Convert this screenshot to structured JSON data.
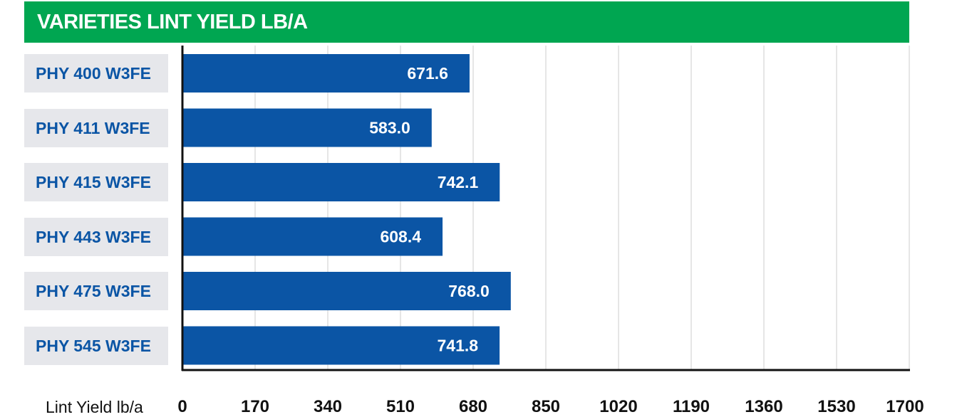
{
  "chart_data": {
    "type": "bar",
    "orientation": "horizontal",
    "title": "VARIETIES LINT YIELD LB/A",
    "xlabel": "Lint Yield lb/a",
    "ylabel": "",
    "categories": [
      "PHY 400 W3FE",
      "PHY 411 W3FE",
      "PHY 415 W3FE",
      "PHY 443 W3FE",
      "PHY 475 W3FE",
      "PHY 545 W3FE"
    ],
    "values": [
      671.6,
      583.0,
      742.1,
      608.4,
      768.0,
      741.8
    ],
    "value_labels": [
      "671.6",
      "583.0",
      "742.1",
      "608.4",
      "768.0",
      "741.8"
    ],
    "xlim": [
      0,
      1700
    ],
    "xticks": [
      0,
      170,
      340,
      510,
      680,
      850,
      1020,
      1190,
      1360,
      1530,
      1700
    ],
    "grid": true,
    "colors": {
      "title_bg": "#00a651",
      "bar": "#0b55a5",
      "label_bg": "#e6e7eb",
      "label_text": "#0b55a5",
      "grid": "#cccccc"
    }
  }
}
